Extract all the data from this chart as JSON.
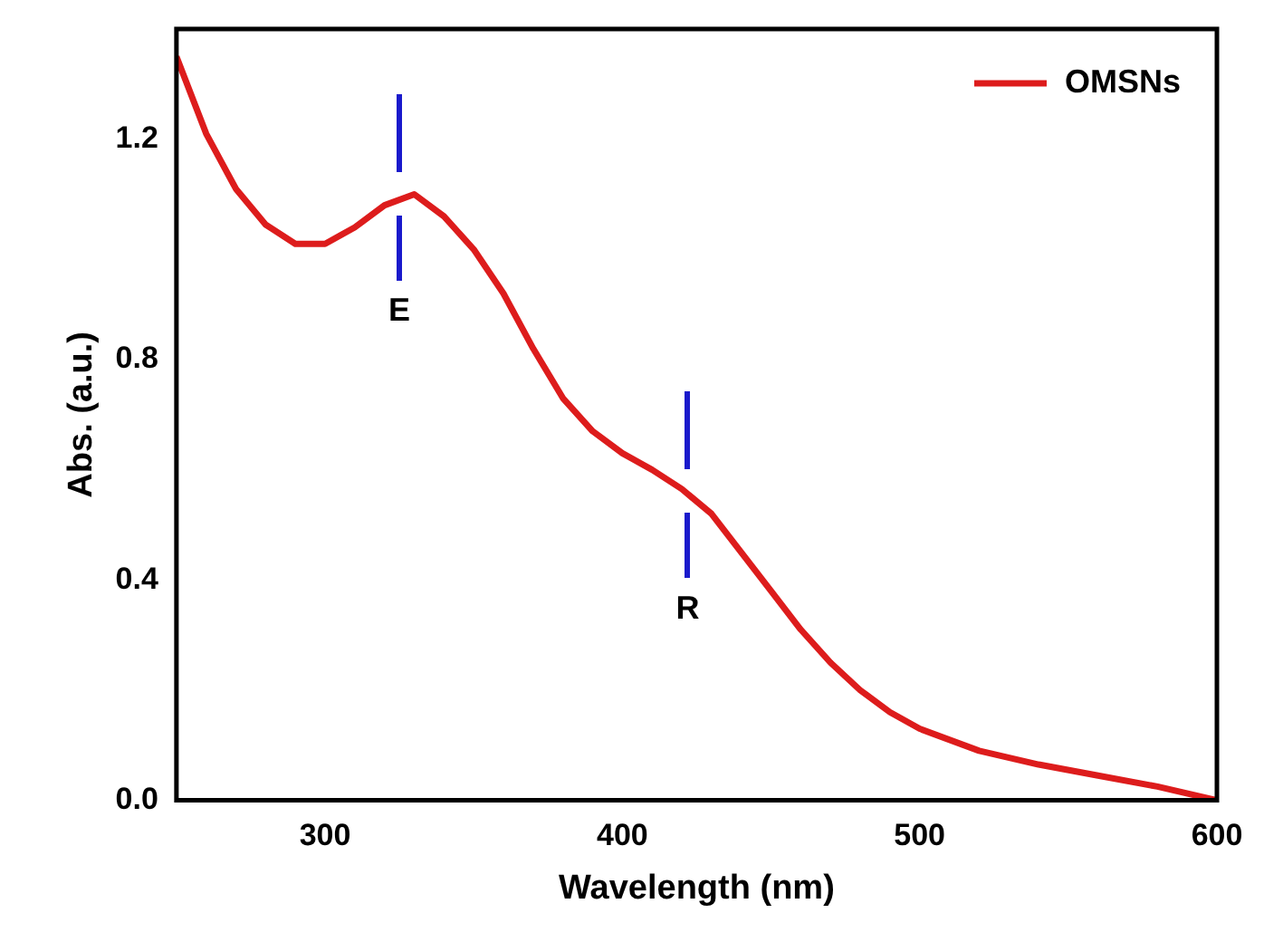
{
  "chart_data": {
    "type": "line",
    "xlabel": "Wavelength (nm)",
    "ylabel": "Abs. (a.u.)",
    "xlim": [
      250,
      600
    ],
    "xticks": [
      300,
      400,
      500,
      600
    ],
    "ylim": [
      0,
      1.4
    ],
    "yticks": [
      {
        "value": 0,
        "label": "0.0"
      },
      0.4,
      0.8,
      1.2
    ],
    "x": [
      250,
      260,
      270,
      280,
      290,
      300,
      310,
      320,
      330,
      340,
      350,
      360,
      370,
      380,
      390,
      400,
      410,
      420,
      430,
      440,
      450,
      460,
      470,
      480,
      490,
      500,
      520,
      540,
      560,
      580,
      600
    ],
    "series": [
      {
        "name": "OMSNs",
        "color": "#dd1c1c",
        "values": [
          1.35,
          1.21,
          1.11,
          1.045,
          1.01,
          1.01,
          1.04,
          1.08,
          1.1,
          1.06,
          1.0,
          0.92,
          0.82,
          0.73,
          0.67,
          0.63,
          0.6,
          0.565,
          0.52,
          0.45,
          0.38,
          0.31,
          0.25,
          0.2,
          0.16,
          0.13,
          0.09,
          0.065,
          0.045,
          0.025,
          0.0
        ]
      }
    ],
    "annotations": [
      {
        "text": "E",
        "x": 325,
        "y": 1.1
      },
      {
        "text": "R",
        "x": 422,
        "y": 0.56
      }
    ],
    "legend": "top right",
    "grid": false,
    "marker": "none",
    "line_style": "solid"
  }
}
